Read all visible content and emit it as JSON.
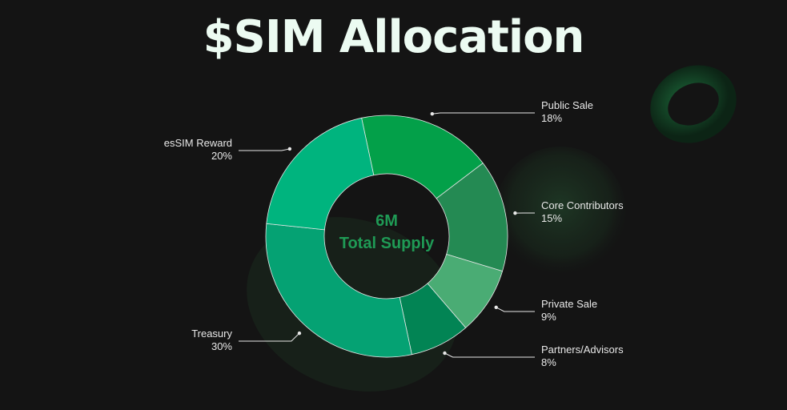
{
  "title": "$SIM Allocation",
  "center": {
    "value": "6M",
    "label": "Total Supply"
  },
  "chart_data": {
    "type": "pie",
    "donut": true,
    "title": "$SIM Allocation",
    "center_text": [
      "6M",
      "Total Supply"
    ],
    "slices": [
      {
        "label": "Public Sale",
        "value": 18,
        "display": "18%",
        "color": "#03a049"
      },
      {
        "label": "Core Contributors",
        "value": 15,
        "display": "15%",
        "color": "#248a53"
      },
      {
        "label": "Private Sale",
        "value": 9,
        "display": "9%",
        "color": "#4aac74"
      },
      {
        "label": "Partners/Advisors",
        "value": 8,
        "display": "8%",
        "color": "#028454"
      },
      {
        "label": "Treasury",
        "value": 30,
        "display": "30%",
        "color": "#05a273"
      },
      {
        "label": "esSIM Reward",
        "value": 20,
        "display": "20%",
        "color": "#00b47e"
      }
    ]
  },
  "colors": {
    "background": "#141414",
    "title": "#ecfbf2",
    "center_text": "#1f9a55",
    "leader_line": "#e8e8e8"
  }
}
